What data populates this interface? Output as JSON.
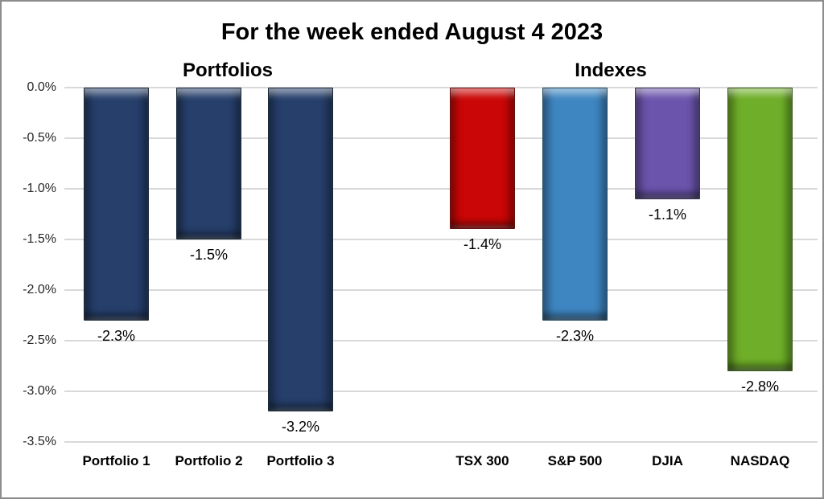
{
  "chart_data": {
    "type": "bar",
    "title": "For the week ended August 4 2023",
    "orientation": "vertical",
    "xlabel": "",
    "ylabel": "",
    "ylim": [
      -3.5,
      0
    ],
    "grid": true,
    "legend_position": "none",
    "value_format": "percent",
    "yticks": [
      {
        "value": 0.0,
        "label": "0.0%"
      },
      {
        "value": -0.5,
        "label": "-0.5%"
      },
      {
        "value": -1.0,
        "label": "-1.0%"
      },
      {
        "value": -1.5,
        "label": "-1.5%"
      },
      {
        "value": -2.0,
        "label": "-2.0%"
      },
      {
        "value": -2.5,
        "label": "-2.5%"
      },
      {
        "value": -3.0,
        "label": "-3.0%"
      },
      {
        "value": -3.5,
        "label": "-3.5%"
      }
    ],
    "groups": [
      {
        "label": "Portfolios",
        "bars": [
          {
            "category": "Portfolio 1",
            "value": -2.3,
            "data_label": "-2.3%",
            "color": "#263f6b"
          },
          {
            "category": "Portfolio 2",
            "value": -1.5,
            "data_label": "-1.5%",
            "color": "#263f6b"
          },
          {
            "category": "Portfolio 3",
            "value": -3.2,
            "data_label": "-3.2%",
            "color": "#263f6b"
          }
        ]
      },
      {
        "label": "Indexes",
        "bars": [
          {
            "category": "TSX 300",
            "value": -1.4,
            "data_label": "-1.4%",
            "color": "#cb0606"
          },
          {
            "category": "S&P 500",
            "value": -2.3,
            "data_label": "-2.3%",
            "color": "#3e86c2"
          },
          {
            "category": "DJIA",
            "value": -1.1,
            "data_label": "-1.1%",
            "color": "#6a54ac"
          },
          {
            "category": "NASDAQ",
            "value": -2.8,
            "data_label": "-2.8%",
            "color": "#6eae28"
          }
        ]
      }
    ]
  }
}
